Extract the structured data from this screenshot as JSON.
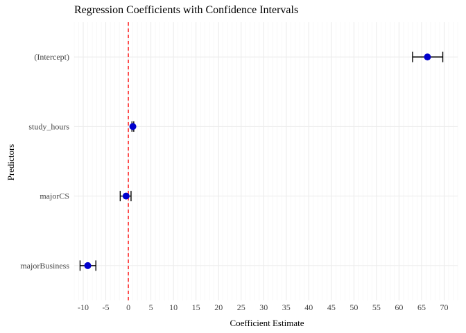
{
  "chart_data": {
    "type": "scatter",
    "title": "Regression Coefficients with Confidence Intervals",
    "xlabel": "Coefficient Estimate",
    "ylabel": "Predictors",
    "categories": [
      "(Intercept)",
      "study_hours",
      "majorCS",
      "majorBusiness"
    ],
    "estimates": [
      66.3,
      1.0,
      -0.5,
      -9.0
    ],
    "ci_lower": [
      63.0,
      0.8,
      -1.8,
      -10.7
    ],
    "ci_upper": [
      69.7,
      1.2,
      0.6,
      -7.2
    ],
    "xlim": [
      -12,
      73
    ],
    "x_ticks": [
      -10,
      -5,
      0,
      5,
      10,
      15,
      20,
      25,
      30,
      35,
      40,
      45,
      50,
      55,
      60,
      65,
      70
    ],
    "x_tick_labels": [
      "-10",
      "-5",
      "0",
      "5",
      "10",
      "15",
      "20",
      "25",
      "30",
      "35",
      "40",
      "45",
      "50",
      "55",
      "60",
      "65",
      "70"
    ],
    "reference_line": 0,
    "grid": true,
    "colors": {
      "point": "#0000cd",
      "error_bar": "#000000",
      "reference_line": "#ff0000"
    }
  }
}
